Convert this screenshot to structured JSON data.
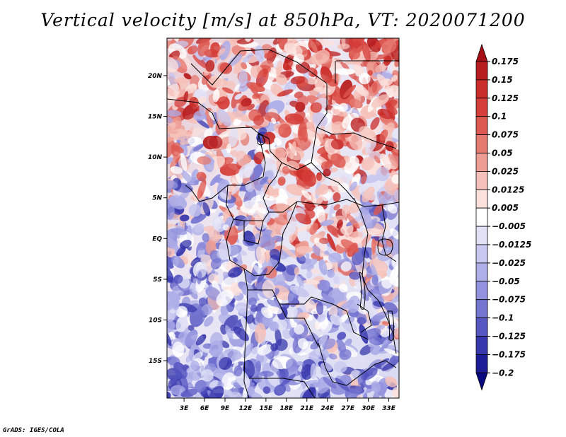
{
  "title": "Vertical velocity [m/s] at 850hPa, VT: 2020071200",
  "credit": "GrADS: IGES/COLA",
  "map": {
    "lat_labels": [
      "20N",
      "15N",
      "10N",
      "5N",
      "EQ",
      "5S",
      "10S",
      "15S"
    ],
    "lat_values": [
      20,
      15,
      10,
      5,
      0,
      -5,
      -10,
      -15
    ],
    "lon_labels": [
      "3E",
      "6E",
      "9E",
      "12E",
      "15E",
      "18E",
      "21E",
      "24E",
      "27E",
      "30E",
      "33E"
    ],
    "lon_values": [
      3,
      6,
      9,
      12,
      15,
      18,
      21,
      24,
      27,
      30,
      33
    ],
    "lon_range": [
      0.5,
      34.5
    ],
    "lat_range": [
      -19.6,
      24.6
    ]
  },
  "colorbar": {
    "levels": [
      "0.175",
      "0.15",
      "0.125",
      "0.1",
      "0.075",
      "0.05",
      "0.025",
      "0.0125",
      "0.005",
      "−0.005",
      "−0.0125",
      "−0.025",
      "−0.05",
      "−0.075",
      "−0.1",
      "−0.125",
      "−0.175",
      "−0.2"
    ],
    "colors": [
      "#a50f15",
      "#b81d1f",
      "#cb2e2a",
      "#d63f3a",
      "#dd5a52",
      "#e57a70",
      "#ee9d94",
      "#f5c1ba",
      "#fbe0dc",
      "#ffffff",
      "#e2e2f7",
      "#c8c8f0",
      "#aeaee8",
      "#9292de",
      "#7575d2",
      "#5757c2",
      "#3838ae",
      "#1c1c96",
      "#0a0a80"
    ]
  }
}
